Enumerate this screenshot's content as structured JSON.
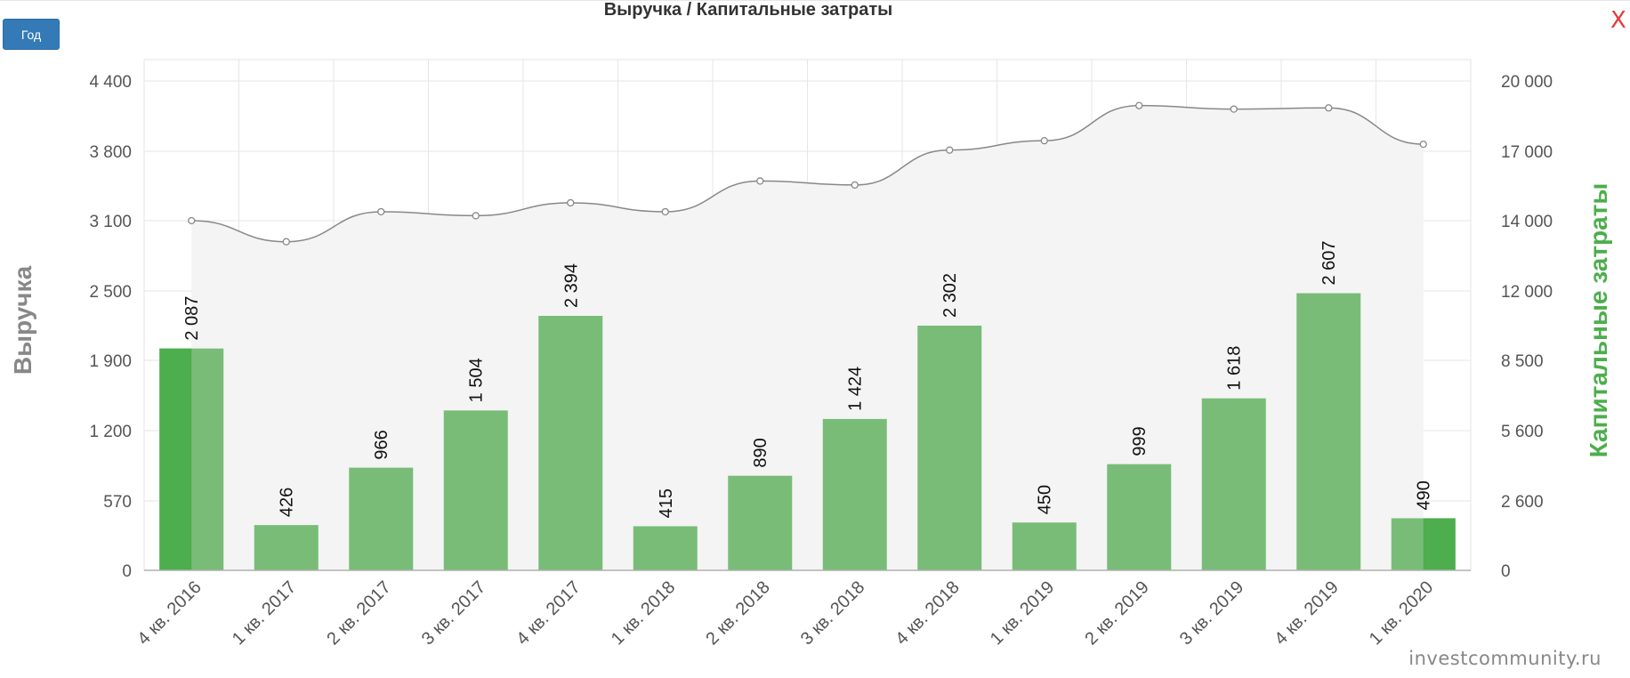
{
  "toolbar": {
    "period_label": "Год",
    "close_label": "X"
  },
  "watermark": "investcommunity.ru",
  "colors": {
    "bar": "#78bc78",
    "bar_highlight": "#4cae4c",
    "line": "#888888",
    "area": "#f4f4f4",
    "right_axis_title": "#4cae4c",
    "left_axis_title": "#888888"
  },
  "chart_data": {
    "type": "bar",
    "title": "Выручка / Капитальные затраты",
    "categories": [
      "4 кв. 2016",
      "1 кв. 2017",
      "2 кв. 2017",
      "3 кв. 2017",
      "4 кв. 2017",
      "1 кв. 2018",
      "2 кв. 2018",
      "3 кв. 2018",
      "4 кв. 2018",
      "1 кв. 2019",
      "2 кв. 2019",
      "3 кв. 2019",
      "4 кв. 2019",
      "1 кв. 2020"
    ],
    "ylabel_left": "Выручка",
    "ylabel_right": "Капитальные затраты",
    "left_ticks": [
      "0",
      "570",
      "1 200",
      "1 900",
      "2 500",
      "3 100",
      "3 800",
      "4 400"
    ],
    "right_ticks": [
      "0",
      "2 600",
      "5 600",
      "8 500",
      "12 000",
      "14 000",
      "17 000",
      "20 000"
    ],
    "bars": {
      "name": "Капитальные затраты",
      "values": [
        2087,
        426,
        966,
        1504,
        2394,
        415,
        890,
        1424,
        2302,
        450,
        999,
        1618,
        2607,
        490
      ],
      "labels": [
        "2 087",
        "426",
        "966",
        "1 504",
        "2 394",
        "415",
        "890",
        "1 424",
        "2 302",
        "450",
        "999",
        "1 618",
        "2 607",
        "490"
      ]
    },
    "line": {
      "name": "Выручка",
      "values": [
        3100,
        2920,
        3190,
        3150,
        3280,
        3190,
        3500,
        3460,
        3810,
        3890,
        4190,
        4160,
        4170,
        3860
      ]
    },
    "grid": true
  }
}
